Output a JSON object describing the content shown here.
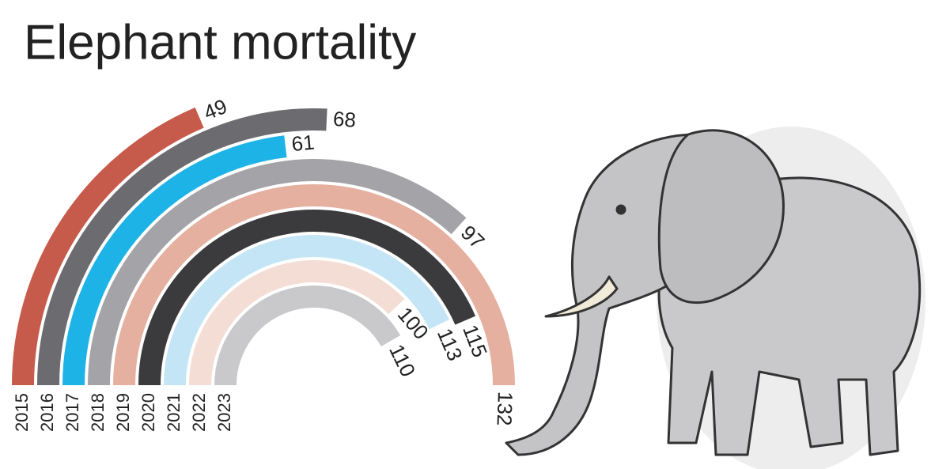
{
  "chart_data": {
    "type": "radial-bar",
    "title": "Elephant mortality",
    "categories": [
      "2015",
      "2016",
      "2017",
      "2018",
      "2019",
      "2020",
      "2021",
      "2022",
      "2023"
    ],
    "values": [
      49,
      68,
      61,
      97,
      132,
      115,
      113,
      100,
      110
    ],
    "colors": [
      "#c75b4b",
      "#6c6c70",
      "#1eb3e6",
      "#a4a4a8",
      "#e6b0a0",
      "#3b3b3e",
      "#c4e5f6",
      "#f4ddd5",
      "#c9c9cc"
    ]
  }
}
